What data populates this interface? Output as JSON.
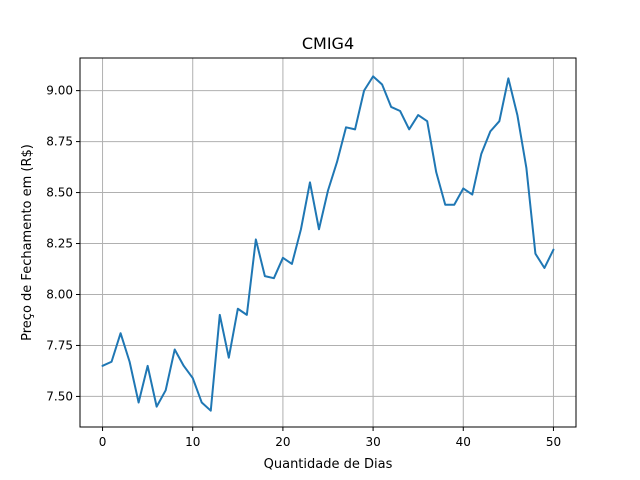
{
  "chart_data": {
    "type": "line",
    "title": "CMIG4",
    "xlabel": "Quantidade de Dias",
    "ylabel": "Preço de Fechamento em (R$)",
    "xlim": [
      -2.5,
      52.5
    ],
    "ylim": [
      7.35,
      9.16
    ],
    "xticks": [
      0,
      10,
      20,
      30,
      40,
      50
    ],
    "yticks": [
      7.5,
      7.75,
      8.0,
      8.25,
      8.5,
      8.75,
      9.0
    ],
    "ytick_labels": [
      "7.50",
      "7.75",
      "8.00",
      "8.25",
      "8.50",
      "8.75",
      "9.00"
    ],
    "grid": true,
    "line_color": "#1f77b4",
    "series": [
      {
        "x": [
          0,
          1,
          2,
          3,
          4,
          5,
          6,
          7,
          8,
          9,
          10,
          11,
          12,
          13,
          14,
          15,
          16,
          17,
          18,
          19,
          20,
          21,
          22,
          23,
          24,
          25,
          26,
          27,
          28,
          29,
          30,
          31,
          32,
          33,
          34,
          35,
          36,
          37,
          38,
          39,
          40,
          41,
          42,
          43,
          44,
          45,
          46,
          47,
          48,
          49,
          50
        ],
        "values": [
          7.65,
          7.67,
          7.81,
          7.67,
          7.47,
          7.65,
          7.45,
          7.53,
          7.73,
          7.65,
          7.59,
          7.47,
          7.43,
          7.9,
          7.69,
          7.93,
          7.9,
          8.27,
          8.09,
          8.08,
          8.18,
          8.15,
          8.32,
          8.55,
          8.32,
          8.51,
          8.65,
          8.82,
          8.81,
          9.0,
          9.07,
          9.03,
          8.92,
          8.9,
          8.81,
          8.88,
          8.85,
          8.6,
          8.44,
          8.44,
          8.52,
          8.49,
          8.69,
          8.8,
          8.85,
          9.06,
          8.88,
          8.62,
          8.2,
          8.13,
          8.22
        ]
      }
    ]
  }
}
